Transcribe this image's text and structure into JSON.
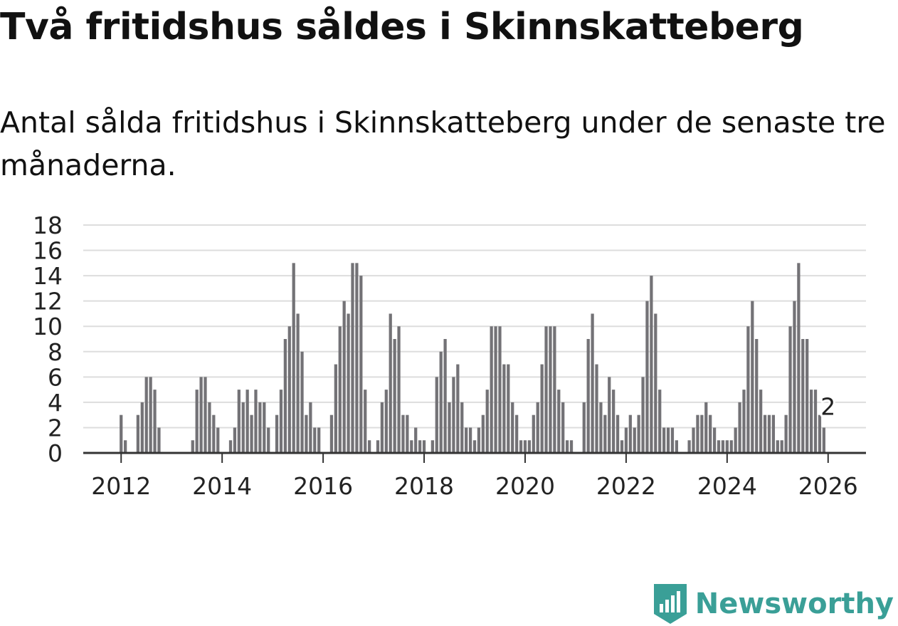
{
  "title": "Två fritidshus såldes i Skinnskatteberg",
  "subtitle": "Antal sålda fritidshus i Skinnskatteberg under de senaste tre månaderna.",
  "brand": {
    "name": "Newsworthy",
    "color": "#3a9f97"
  },
  "colors": {
    "bar": "#737276",
    "highlight": "#1fa39a",
    "grid": "#dddddd",
    "axis": "#333333"
  },
  "chart_data": {
    "type": "bar",
    "title": "Antal sålda fritidshus i Skinnskatteberg under de senaste tre månaderna.",
    "x_start": "2012-01",
    "y_ticks": [
      0,
      2,
      4,
      6,
      8,
      10,
      12,
      14,
      16,
      18
    ],
    "ylim": [
      0,
      18
    ],
    "x_ticks": [
      {
        "label": "2012",
        "index": 0
      },
      {
        "label": "2014",
        "index": 24
      },
      {
        "label": "2016",
        "index": 48
      },
      {
        "label": "2018",
        "index": 72
      },
      {
        "label": "2020",
        "index": 96
      },
      {
        "label": "2022",
        "index": 120
      },
      {
        "label": "2024",
        "index": 144
      },
      {
        "label": "2026",
        "index": 168
      }
    ],
    "xlim": [
      -9,
      177
    ],
    "values": [
      3,
      1,
      0,
      0,
      3,
      4,
      6,
      6,
      5,
      2,
      0,
      0,
      0,
      0,
      0,
      0,
      0,
      1,
      5,
      6,
      6,
      4,
      3,
      2,
      0,
      0,
      1,
      2,
      5,
      4,
      5,
      3,
      5,
      4,
      4,
      2,
      0,
      3,
      5,
      9,
      10,
      15,
      11,
      8,
      3,
      4,
      2,
      2,
      0,
      0,
      3,
      7,
      10,
      12,
      11,
      15,
      15,
      14,
      5,
      1,
      0,
      1,
      4,
      5,
      11,
      9,
      10,
      3,
      3,
      1,
      2,
      1,
      1,
      0,
      1,
      6,
      8,
      9,
      4,
      6,
      7,
      4,
      2,
      2,
      1,
      2,
      3,
      5,
      10,
      10,
      10,
      7,
      7,
      4,
      3,
      1,
      1,
      1,
      3,
      4,
      7,
      10,
      10,
      10,
      5,
      4,
      1,
      1,
      0,
      0,
      4,
      9,
      11,
      7,
      4,
      3,
      6,
      5,
      3,
      1,
      2,
      3,
      2,
      3,
      6,
      12,
      14,
      11,
      5,
      2,
      2,
      2,
      1,
      0,
      0,
      1,
      2,
      3,
      3,
      4,
      3,
      2,
      1,
      1,
      1,
      1,
      2,
      4,
      5,
      10,
      12,
      9,
      5,
      3,
      3,
      3,
      1,
      1,
      3,
      10,
      12,
      15,
      9,
      9,
      5,
      5,
      3,
      2
    ],
    "highlight": {
      "index": 168,
      "value": 2,
      "label": "2"
    }
  }
}
